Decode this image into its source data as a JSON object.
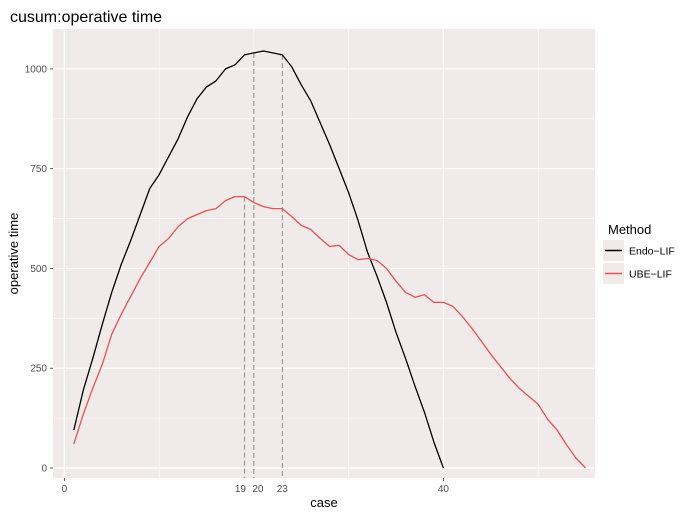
{
  "chart_data": {
    "type": "line",
    "title": "cusum:operative time",
    "xlabel": "case",
    "ylabel": "operative time",
    "xlim": [
      -1.2,
      56
    ],
    "ylim": [
      -25,
      1100
    ],
    "x_ticks": [
      0,
      40
    ],
    "y_ticks": [
      0,
      250,
      500,
      750,
      1000
    ],
    "x_minor_gridlines": [
      10,
      20,
      30,
      50
    ],
    "y_minor_gridlines": [
      125,
      375,
      625,
      875
    ],
    "grid": true,
    "panel_background": "#f0eaea",
    "legend": {
      "title": "Method",
      "position": "right"
    },
    "series": [
      {
        "name": "Endo−LIF",
        "color": "#000000",
        "x": [
          1,
          2,
          3,
          4,
          5,
          6,
          7,
          8,
          9,
          10,
          11,
          12,
          13,
          14,
          15,
          16,
          17,
          18,
          19,
          20,
          21,
          22,
          23,
          24,
          25,
          26,
          27,
          28,
          29,
          30,
          31,
          32,
          33,
          34,
          35,
          36,
          37,
          38,
          39,
          40
        ],
        "y": [
          95,
          195,
          275,
          360,
          440,
          510,
          570,
          635,
          700,
          735,
          780,
          825,
          880,
          925,
          955,
          970,
          1000,
          1010,
          1035,
          1040,
          1045,
          1040,
          1035,
          1005,
          960,
          920,
          865,
          810,
          750,
          690,
          620,
          540,
          480,
          415,
          340,
          275,
          205,
          140,
          65,
          0
        ]
      },
      {
        "name": "UBE−LIF",
        "color": "#e8524f",
        "x": [
          1,
          2,
          3,
          4,
          5,
          6,
          7,
          8,
          9,
          10,
          11,
          12,
          13,
          14,
          15,
          16,
          17,
          18,
          19,
          20,
          21,
          22,
          23,
          24,
          25,
          26,
          27,
          28,
          29,
          30,
          31,
          32,
          33,
          34,
          35,
          36,
          37,
          38,
          39,
          40,
          41,
          42,
          43,
          44,
          45,
          46,
          47,
          48,
          49,
          50,
          51,
          52,
          53,
          54,
          55
        ],
        "y": [
          60,
          135,
          200,
          260,
          335,
          385,
          430,
          475,
          515,
          555,
          575,
          605,
          625,
          635,
          645,
          650,
          670,
          680,
          680,
          665,
          655,
          650,
          650,
          630,
          608,
          598,
          575,
          555,
          558,
          535,
          522,
          525,
          520,
          500,
          468,
          440,
          428,
          434,
          415,
          415,
          405,
          380,
          350,
          318,
          285,
          255,
          225,
          200,
          180,
          160,
          122,
          95,
          58,
          25,
          0
        ]
      }
    ],
    "reference_lines": [
      {
        "x": 19,
        "y": 680,
        "label": "19",
        "color": "#808080",
        "style": "dashed"
      },
      {
        "x": 20,
        "y": 1040,
        "label": "20",
        "color": "#808080",
        "style": "dashed"
      },
      {
        "x": 23,
        "y": 1035,
        "label": "23",
        "color": "#808080",
        "style": "dashed"
      }
    ]
  }
}
